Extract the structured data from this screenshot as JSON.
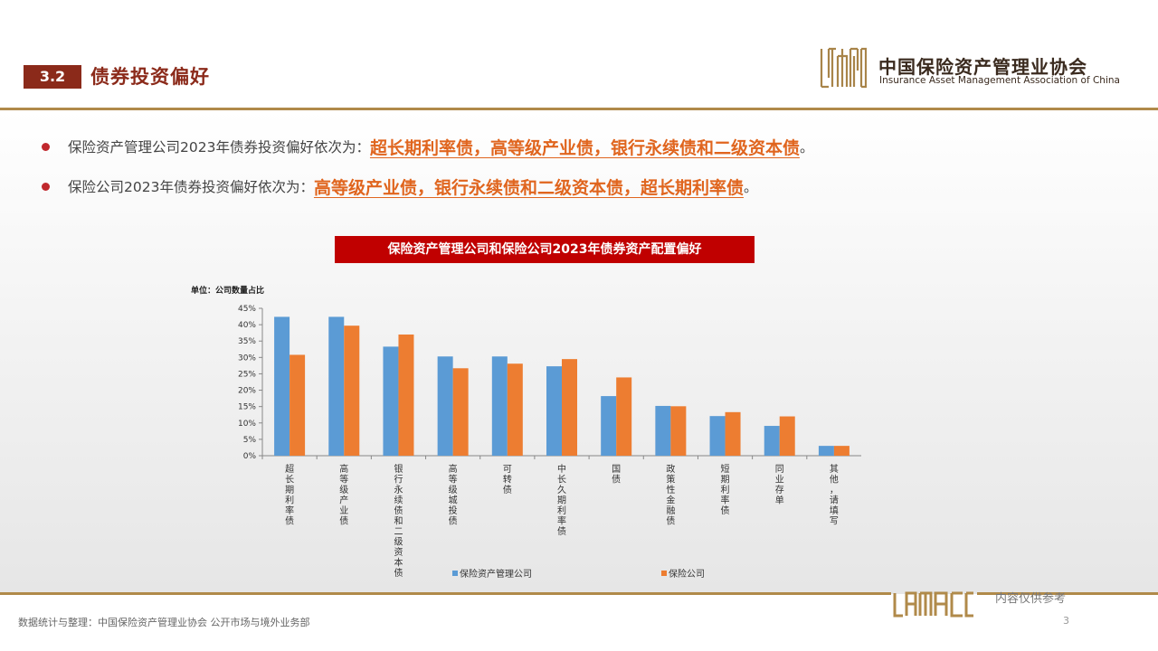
{
  "section": {
    "number": "3.2",
    "title": "债券投资偏好"
  },
  "logo": {
    "cn": "中国保险资产管理业协会",
    "en": "Insurance Asset Management Association of China"
  },
  "bullets": [
    {
      "text": "保险资产管理公司2023年债券投资偏好依次为：",
      "highlight": "超长期利率债，高等级产业债，银行永续债和二级资本债",
      "end": "。"
    },
    {
      "text": "保险公司2023年债券投资偏好依次为：",
      "highlight": "高等级产业债，银行永续债和二级资本债，超长期利率债",
      "end": "。"
    }
  ],
  "chart_data": {
    "type": "bar",
    "title": "保险资产管理公司和保险公司2023年债券资产配置偏好",
    "unit_label": "单位：公司数量占比",
    "categories": [
      "超长期利率债",
      "高等级产业债",
      "银行永续债和二级资本债",
      "高等级城投债",
      "可转债",
      "中长久期利率债",
      "国债",
      "政策性金融债",
      "短期利率债",
      "同业存单",
      "其他，请填写"
    ],
    "series": [
      {
        "name": "保险资产管理公司",
        "color": "#5b9bd5",
        "values": [
          42.4,
          42.4,
          33.3,
          30.3,
          30.3,
          27.3,
          18.2,
          15.2,
          12.1,
          9.1,
          3.0
        ]
      },
      {
        "name": "保险公司",
        "color": "#ed7d31",
        "values": [
          30.8,
          39.7,
          37.0,
          26.7,
          28.1,
          29.5,
          23.9,
          15.1,
          13.3,
          12.0,
          3.0
        ]
      }
    ],
    "ylim": [
      0,
      45
    ],
    "yticks": [
      "0%",
      "5%",
      "10%",
      "15%",
      "20%",
      "25%",
      "30%",
      "35%",
      "40%",
      "45%"
    ],
    "grid": false,
    "legend": "bottom"
  },
  "footer": {
    "source": "数据统计与整理：中国保险资产管理业协会 公开市场与境外业务部",
    "note": "内容仅供参考",
    "page": "3"
  },
  "colors": {
    "brand": "#8b2a1a",
    "accent": "#e0651e",
    "gold": "#b08a4a",
    "title_bg": "#c00000"
  }
}
